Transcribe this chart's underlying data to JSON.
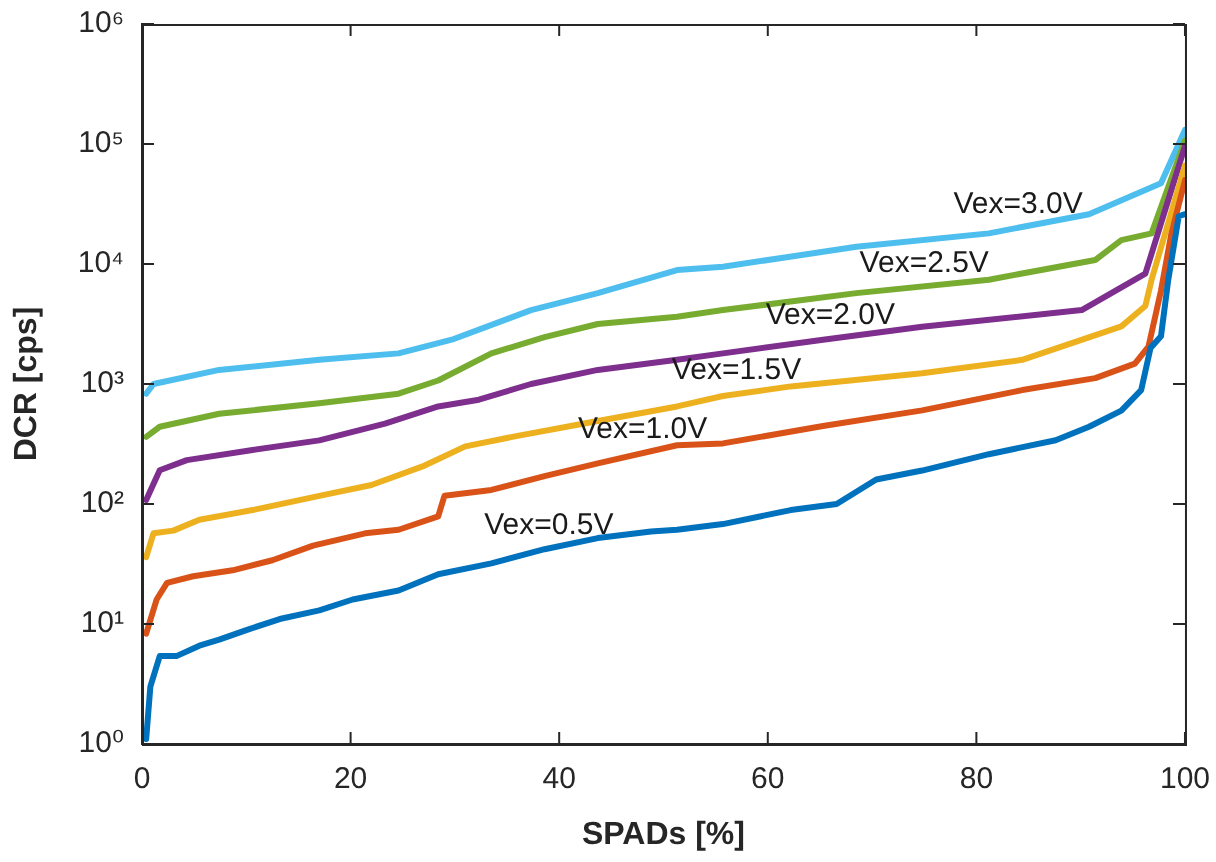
{
  "chart_data": {
    "type": "line",
    "xlabel": "SPADs [%]",
    "ylabel": "DCR [cps]",
    "log": "y",
    "grid": false,
    "legend": false,
    "marker": "none",
    "line_style": "solid",
    "xlim": [
      0,
      100
    ],
    "xticks": [
      0,
      20,
      40,
      60,
      80,
      100
    ],
    "ylim": [
      1,
      1000000
    ],
    "yticks": [
      {
        "value": 1,
        "label": "10⁰"
      },
      {
        "value": 10,
        "label": "10¹"
      },
      {
        "value": 100,
        "label": "10²"
      },
      {
        "value": 1000,
        "label": "10³"
      },
      {
        "value": 10000,
        "label": "10⁴"
      },
      {
        "value": 100000,
        "label": "10⁵"
      },
      {
        "value": 1000000,
        "label": "10⁶"
      }
    ],
    "series": [
      {
        "name": "Vex=0.5V",
        "color": "#0072bd",
        "x": [
          0.4,
          0.8,
          1.7,
          3.3,
          5.5,
          7.4,
          10,
          13.2,
          17,
          20.2,
          24.6,
          28.4,
          33.5,
          38.6,
          43.7,
          48.8,
          51.3,
          55.7,
          62.2,
          66.6,
          70.4,
          74.8,
          81.2,
          87.6,
          90.8,
          93.9,
          95.8,
          96.7,
          97.7,
          98.4,
          99.4,
          100
        ],
        "values": [
          1.1,
          3,
          5.4,
          5.4,
          6.6,
          7.4,
          8.9,
          11,
          13,
          16,
          19,
          26,
          32,
          42,
          52,
          59,
          61,
          68,
          89,
          100,
          160,
          190,
          260,
          340,
          440,
          600,
          890,
          2000,
          2500,
          7400,
          25000,
          26000
        ]
      },
      {
        "name": "Vex=1.0V",
        "color": "#d95319",
        "x": [
          0.4,
          1.4,
          2.4,
          4.9,
          8.7,
          12.5,
          16.4,
          21.4,
          24.6,
          28.4,
          29,
          33.5,
          38.6,
          43.7,
          51.3,
          55.7,
          65.3,
          74.8,
          84.4,
          91.4,
          95.2,
          96.5,
          97.7,
          98.7,
          100
        ],
        "values": [
          8.3,
          16,
          22,
          25,
          28,
          34,
          45,
          57,
          61,
          79,
          117,
          131,
          171,
          218,
          309,
          320,
          447,
          603,
          890,
          1120,
          1480,
          2050,
          6000,
          18000,
          50000
        ]
      },
      {
        "name": "Vex=1.5V",
        "color": "#edb120",
        "x": [
          0.4,
          1.1,
          3,
          5.5,
          10.6,
          17,
          22,
          27.1,
          31,
          36,
          42.4,
          51.3,
          55.7,
          62.2,
          74.8,
          84.4,
          93.9,
          96.2,
          96.8,
          100
        ],
        "values": [
          36,
          57,
          60,
          74,
          89,
          117,
          144,
          209,
          302,
          370,
          468,
          650,
          795,
          955,
          1230,
          1590,
          3020,
          4470,
          7400,
          66000
        ]
      },
      {
        "name": "Vex=2.0V",
        "color": "#7e2f8e",
        "x": [
          0.4,
          1.7,
          4.3,
          10.6,
          17,
          23.3,
          28.4,
          32.3,
          37.3,
          43.7,
          51.3,
          55.7,
          65.3,
          74.8,
          90.1,
          96.2,
          100
        ],
        "values": [
          108,
          191,
          232,
          282,
          339,
          468,
          650,
          740,
          1000,
          1310,
          1590,
          1800,
          2340,
          3000,
          4130,
          8300,
          96000
        ]
      },
      {
        "name": "Vex=2.5V",
        "color": "#77ac30",
        "x": [
          0.4,
          1.7,
          7.4,
          17,
          24.6,
          28.4,
          33.5,
          38.6,
          43.7,
          51.3,
          55.7,
          68.5,
          81.2,
          91.4,
          93.9,
          96.8,
          100
        ],
        "values": [
          363,
          440,
          565,
          690,
          830,
          1070,
          1800,
          2460,
          3160,
          3630,
          4130,
          5720,
          7400,
          10800,
          15800,
          18000,
          107000
        ]
      },
      {
        "name": "Vex=3.0V",
        "color": "#4dbeee",
        "x": [
          0.4,
          1.1,
          7.4,
          17,
          24.6,
          29.7,
          37.3,
          43.7,
          51.3,
          55.7,
          68.5,
          81.2,
          90.8,
          97.7,
          100
        ],
        "values": [
          830,
          1000,
          1310,
          1590,
          1800,
          2340,
          4130,
          5720,
          8900,
          9500,
          13900,
          18000,
          26000,
          47000,
          131000
        ]
      }
    ]
  }
}
